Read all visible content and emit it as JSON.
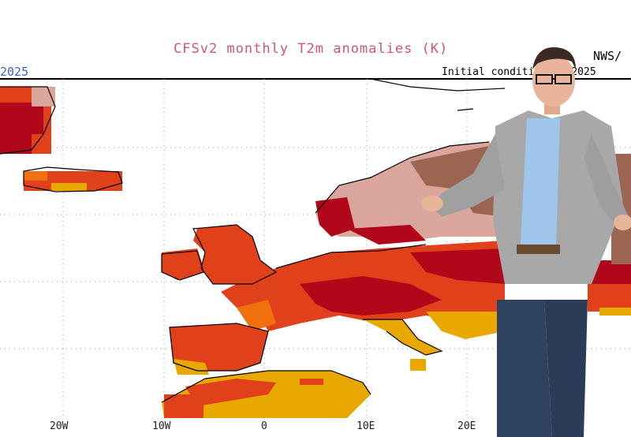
{
  "header": {
    "title": "CFSv2 monthly T2m anomalies (K)",
    "left_date": "2025",
    "right_label": "NWS/",
    "initial_conditions": "Initial conditio 4Jan2025"
  },
  "axis": {
    "x_ticks": [
      "20W",
      "10W",
      "0",
      "10E",
      "20E"
    ]
  },
  "colors": {
    "title": "#d4566a",
    "date": "#3f63c9",
    "dark_red": "#b0071a",
    "red": "#e0401a",
    "orange": "#f07010",
    "yellow": "#e8a800",
    "pink": "#dba79c",
    "brown": "#9b6552",
    "grid": "#9a9a9a"
  }
}
